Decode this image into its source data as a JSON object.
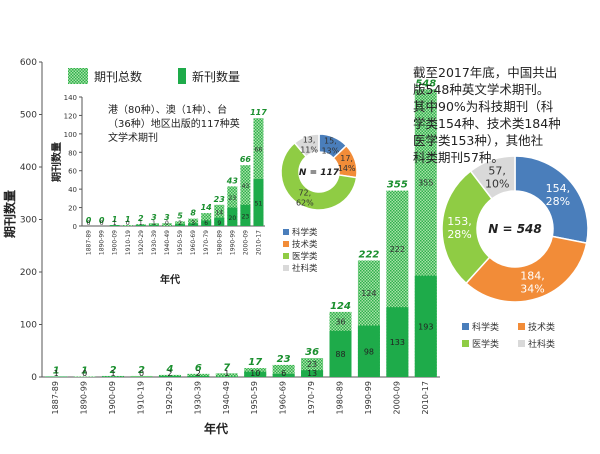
{
  "colors": {
    "total_hatched": "#7fd07f",
    "new_solid": "#1eab4a",
    "total_label": "#1a8f2e",
    "axis": "#555555",
    "science": "#4a7ebb",
    "technology": "#f28c38",
    "medicine": "#8fcc44",
    "social": "#d9d9d9"
  },
  "legend": {
    "total": "期刊总数",
    "new": "新刊数量"
  },
  "note_lines": [
    "截至2017年底，中国共出",
    "版548种英文学术期刊。",
    "其中90%为科技期刊（科",
    "学类154种、技术类184种",
    "医学类153种），其他社",
    "科类期刊57种。"
  ],
  "chart_data": [
    {
      "type": "bar",
      "ylabel": "期刊数量",
      "xlabel": "年代",
      "ylim": [
        0,
        600
      ],
      "yticks": [
        0,
        100,
        200,
        300,
        400,
        500,
        600
      ],
      "categories": [
        "1887-89",
        "1890-99",
        "1900-09",
        "1910-19",
        "1920-29",
        "1930-39",
        "1940-49",
        "1950-59",
        "1960-69",
        "1970-79",
        "1980-89",
        "1990-99",
        "2000-09",
        "2010-17"
      ],
      "series": [
        {
          "name": "期刊总数",
          "values": [
            1,
            1,
            2,
            2,
            4,
            6,
            7,
            17,
            23,
            36,
            124,
            222,
            355,
            548
          ]
        },
        {
          "name": "新刊数量",
          "values": [
            1,
            0,
            1,
            0,
            2,
            2,
            1,
            10,
            6,
            13,
            88,
            98,
            133,
            193
          ]
        }
      ],
      "inner_labels": [
        "",
        "",
        "",
        "",
        "",
        "",
        "",
        "",
        "",
        "23",
        "36",
        "124",
        "222",
        "355"
      ],
      "grid": false
    },
    {
      "type": "bar",
      "title": "港（80种）、澳（1种）、台（36种）地区出版的117种英文学术期刊",
      "title_lines": [
        "港（80种）、澳（1种）、台",
        "（36种）地区出版的117种英",
        "文学术期刊"
      ],
      "ylabel": "期刊数量",
      "xlabel": "年代",
      "ylim": [
        0,
        140
      ],
      "yticks": [
        0,
        20,
        40,
        60,
        80,
        100,
        120,
        140
      ],
      "categories": [
        "1887-89",
        "1890-99",
        "1900-09",
        "1910-19",
        "1920-29",
        "1930-39",
        "1940-49",
        "1950-59",
        "1960-69",
        "1970-79",
        "1980-89",
        "1990-99",
        "2000-09",
        "2010-17"
      ],
      "series": [
        {
          "name": "期刊总数",
          "values": [
            0,
            0,
            1,
            1,
            2,
            3,
            3,
            5,
            8,
            14,
            23,
            43,
            66,
            117
          ]
        },
        {
          "name": "新刊数量",
          "values": [
            0,
            0,
            1,
            0,
            1,
            1,
            0,
            2,
            3,
            6,
            9,
            20,
            23,
            51
          ]
        }
      ],
      "inner_labels": [
        "",
        "",
        "",
        "",
        "",
        "",
        "",
        "",
        "",
        "",
        "14",
        "23",
        "43",
        "66"
      ],
      "grid": false
    },
    {
      "type": "pie",
      "center_label": "N = 117",
      "labels": [
        "科学类",
        "技术类",
        "医学类",
        "社科类"
      ],
      "values": [
        15,
        17,
        72,
        13
      ],
      "percents": [
        "13%",
        "14%",
        "62%",
        "11%"
      ],
      "colors": [
        "#4a7ebb",
        "#f28c38",
        "#8fcc44",
        "#d9d9d9"
      ],
      "legend_position": "below-left"
    },
    {
      "type": "pie",
      "center_label": "N = 548",
      "labels": [
        "科学类",
        "技术类",
        "医学类",
        "社科类"
      ],
      "values": [
        154,
        184,
        153,
        57
      ],
      "percents": [
        "28%",
        "34%",
        "28%",
        "10%"
      ],
      "colors": [
        "#4a7ebb",
        "#f28c38",
        "#8fcc44",
        "#d9d9d9"
      ],
      "legend_position": "bottom"
    }
  ]
}
